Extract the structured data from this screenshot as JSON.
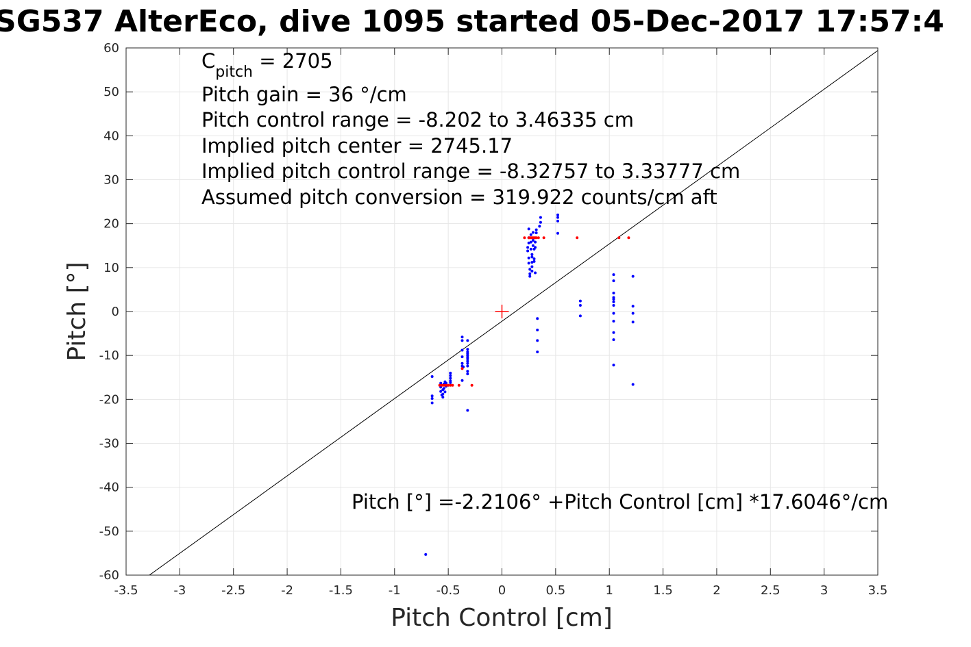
{
  "chart_data": {
    "type": "scatter",
    "title": "SG537 AlterEco, dive 1095 started 05-Dec-2017 17:57:4",
    "xlabel": "Pitch Control [cm]",
    "ylabel": "Pitch [°]",
    "xlim": [
      -3.5,
      3.5
    ],
    "ylim": [
      -60,
      60
    ],
    "grid": true,
    "x_ticks": [
      -3.5,
      -3,
      -2.5,
      -2,
      -1.5,
      -1,
      -0.5,
      0,
      0.5,
      1,
      1.5,
      2,
      2.5,
      3,
      3.5
    ],
    "x_tick_labels": [
      "-3.5",
      "-3",
      "-2.5",
      "-2",
      "-1.5",
      "-1",
      "-0.5",
      "0",
      "0.5",
      "1",
      "1.5",
      "2",
      "2.5",
      "3",
      "3.5"
    ],
    "y_ticks": [
      -60,
      -50,
      -40,
      -30,
      -20,
      -10,
      0,
      10,
      20,
      30,
      40,
      50,
      60
    ],
    "y_tick_labels": [
      "-60",
      "-50",
      "-40",
      "-30",
      "-20",
      "-10",
      "0",
      "10",
      "20",
      "30",
      "40",
      "50",
      "60"
    ],
    "annotations": {
      "cpitch_main": "C",
      "cpitch_sub": "pitch",
      "cpitch_value": " = 2705",
      "line2": "Pitch gain = 36 °/cm",
      "line3": "Pitch control range = -8.202 to 3.46335 cm",
      "line4": "Implied pitch center = 2745.17",
      "line5": "Implied pitch control range = -8.32757 to 3.33777 cm",
      "line6": "Assumed pitch conversion = 319.922 counts/cm aft",
      "fit_equation": "Pitch [°] =-2.2106° +Pitch Control [cm] *17.6046°/cm"
    },
    "fit_line": {
      "intercept": -2.2106,
      "slope": 17.6046,
      "color": "#000000"
    },
    "center_marker": {
      "x": 0,
      "y": 0,
      "color": "#ff0000"
    },
    "series": [
      {
        "color": "#0000ff",
        "points": [
          [
            -0.65,
            -14.8
          ],
          [
            -0.65,
            -19.2
          ],
          [
            -0.65,
            -19.8
          ],
          [
            -0.65,
            -20.8
          ],
          [
            -0.57,
            -16.3
          ],
          [
            -0.57,
            -17.2
          ],
          [
            -0.57,
            -18.2
          ],
          [
            -0.56,
            -19.0
          ],
          [
            -0.55,
            -17.8
          ],
          [
            -0.55,
            -18.8
          ],
          [
            -0.55,
            -19.5
          ],
          [
            -0.54,
            -16.5
          ],
          [
            -0.54,
            -17.5
          ],
          [
            -0.53,
            -16.0
          ],
          [
            -0.53,
            -18.3
          ],
          [
            -0.52,
            -17.0
          ],
          [
            -0.52,
            -16.3
          ],
          [
            -0.48,
            -14.0
          ],
          [
            -0.48,
            -14.6
          ],
          [
            -0.48,
            -15.2
          ],
          [
            -0.48,
            -15.8
          ],
          [
            -0.48,
            -16.2
          ],
          [
            -0.37,
            -5.8
          ],
          [
            -0.37,
            -6.6
          ],
          [
            -0.37,
            -8.8
          ],
          [
            -0.37,
            -10.3
          ],
          [
            -0.37,
            -11.8
          ],
          [
            -0.37,
            -12.4
          ],
          [
            -0.37,
            -15.7
          ],
          [
            -0.36,
            -12.6
          ],
          [
            -0.32,
            -6.6
          ],
          [
            -0.32,
            -8.6
          ],
          [
            -0.32,
            -9.2
          ],
          [
            -0.32,
            -9.6
          ],
          [
            -0.32,
            -10.0
          ],
          [
            -0.32,
            -10.4
          ],
          [
            -0.32,
            -10.8
          ],
          [
            -0.32,
            -11.3
          ],
          [
            -0.32,
            -11.8
          ],
          [
            -0.32,
            -12.4
          ],
          [
            -0.32,
            -13.6
          ],
          [
            -0.32,
            -14.2
          ],
          [
            -0.32,
            -22.5
          ],
          [
            -0.71,
            -55.3
          ],
          [
            0.25,
            18.8
          ],
          [
            0.25,
            16.8
          ],
          [
            0.25,
            15.6
          ],
          [
            0.24,
            14.6
          ],
          [
            0.24,
            13.8
          ],
          [
            0.25,
            12.2
          ],
          [
            0.25,
            11.0
          ],
          [
            0.26,
            9.6
          ],
          [
            0.26,
            8.6
          ],
          [
            0.26,
            8.0
          ],
          [
            0.27,
            17.5
          ],
          [
            0.27,
            15.8
          ],
          [
            0.27,
            14.2
          ],
          [
            0.28,
            13.0
          ],
          [
            0.28,
            12.4
          ],
          [
            0.28,
            11.2
          ],
          [
            0.28,
            10.2
          ],
          [
            0.28,
            9.2
          ],
          [
            0.29,
            18.0
          ],
          [
            0.29,
            16.2
          ],
          [
            0.29,
            15.0
          ],
          [
            0.3,
            14.2
          ],
          [
            0.3,
            12.0
          ],
          [
            0.3,
            11.4
          ],
          [
            0.31,
            15.8
          ],
          [
            0.31,
            14.6
          ],
          [
            0.31,
            8.8
          ],
          [
            0.32,
            17.9
          ],
          [
            0.32,
            18.6
          ],
          [
            0.35,
            19.4
          ],
          [
            0.36,
            20.3
          ],
          [
            0.36,
            21.4
          ],
          [
            0.33,
            -1.6
          ],
          [
            0.33,
            -4.2
          ],
          [
            0.33,
            -6.6
          ],
          [
            0.33,
            -9.2
          ],
          [
            0.52,
            22.0
          ],
          [
            0.52,
            21.4
          ],
          [
            0.52,
            20.6
          ],
          [
            0.52,
            17.8
          ],
          [
            0.73,
            2.4
          ],
          [
            0.73,
            1.4
          ],
          [
            0.73,
            -1.0
          ],
          [
            1.04,
            8.4
          ],
          [
            1.04,
            7.0
          ],
          [
            1.04,
            4.2
          ],
          [
            1.04,
            3.2
          ],
          [
            1.04,
            2.8
          ],
          [
            1.04,
            2.2
          ],
          [
            1.04,
            1.4
          ],
          [
            1.04,
            -0.4
          ],
          [
            1.04,
            -2.2
          ],
          [
            1.04,
            -4.8
          ],
          [
            1.04,
            -6.4
          ],
          [
            1.04,
            -12.2
          ],
          [
            1.22,
            8.0
          ],
          [
            1.22,
            1.2
          ],
          [
            1.22,
            -0.4
          ],
          [
            1.22,
            -2.4
          ],
          [
            1.22,
            -16.6
          ]
        ]
      },
      {
        "color": "#ff0000",
        "points": [
          [
            -0.58,
            -16.8
          ],
          [
            -0.56,
            -16.8
          ],
          [
            -0.54,
            -16.8
          ],
          [
            -0.52,
            -16.8
          ],
          [
            -0.5,
            -16.8
          ],
          [
            -0.48,
            -16.8
          ],
          [
            -0.46,
            -16.8
          ],
          [
            -0.4,
            -16.8
          ],
          [
            -0.28,
            -16.8
          ],
          [
            -0.37,
            -13.0
          ],
          [
            0.21,
            16.8
          ],
          [
            0.25,
            16.8
          ],
          [
            0.26,
            16.8
          ],
          [
            0.27,
            16.8
          ],
          [
            0.28,
            16.8
          ],
          [
            0.29,
            16.8
          ],
          [
            0.3,
            16.8
          ],
          [
            0.31,
            16.8
          ],
          [
            0.32,
            16.8
          ],
          [
            0.34,
            16.8
          ],
          [
            0.39,
            16.8
          ],
          [
            0.7,
            16.8
          ],
          [
            1.09,
            16.8
          ],
          [
            1.18,
            16.8
          ]
        ]
      }
    ]
  }
}
